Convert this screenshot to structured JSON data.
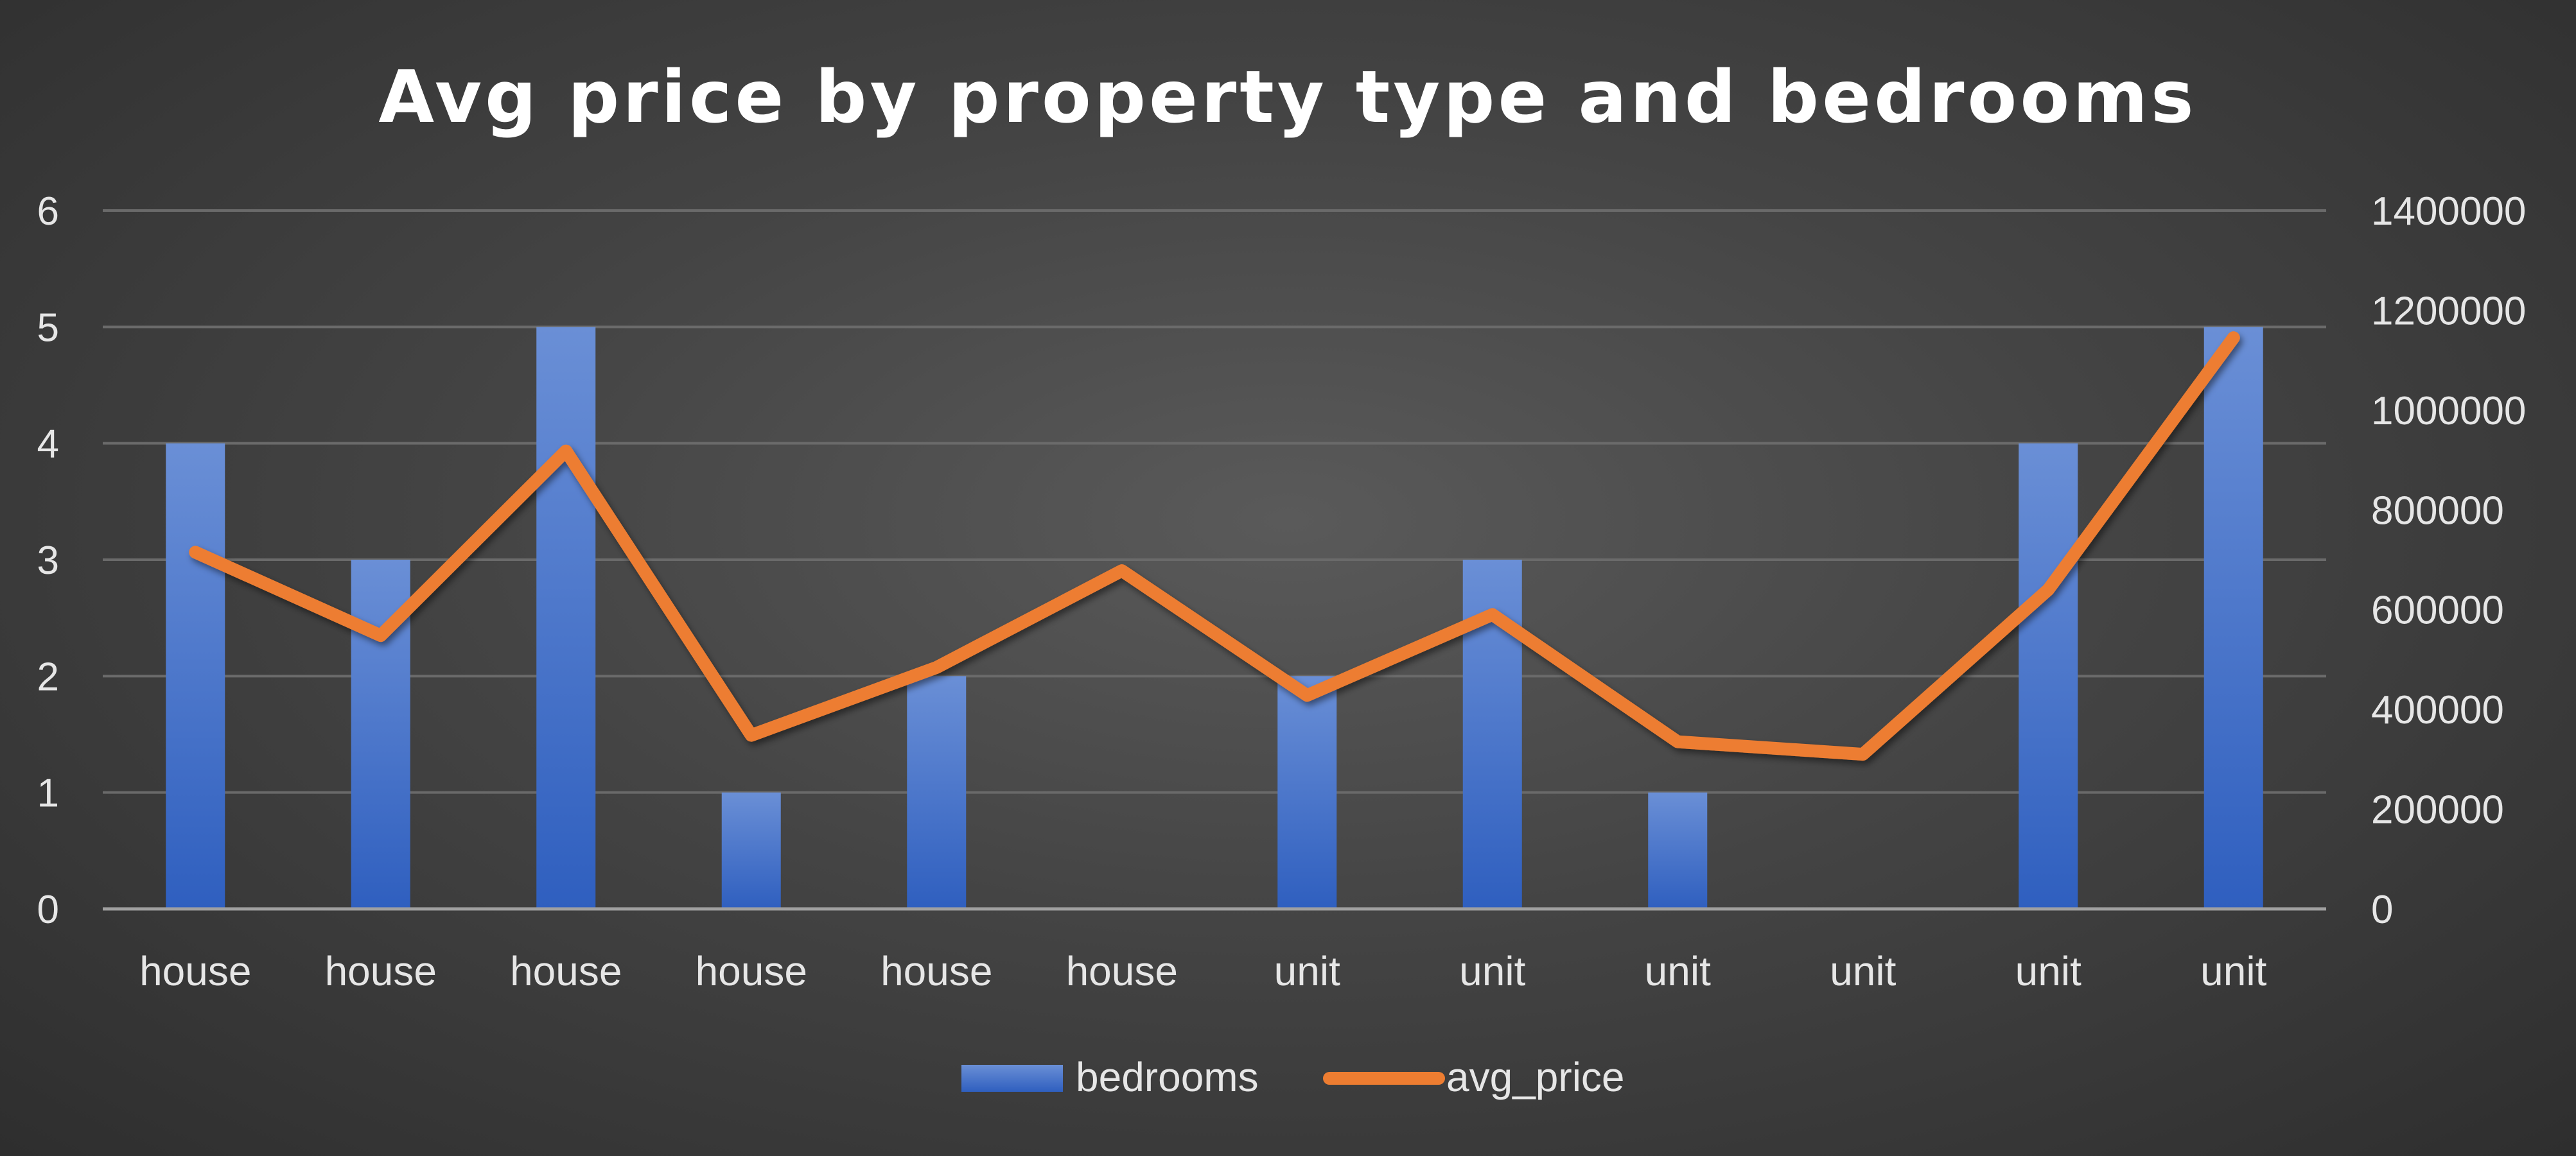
{
  "chart_data": {
    "type": "bar+line",
    "title": "Avg price by property type and bedrooms",
    "categories": [
      "house",
      "house",
      "house",
      "house",
      "house",
      "house",
      "unit",
      "unit",
      "unit",
      "unit",
      "unit",
      "unit"
    ],
    "series": [
      {
        "name": "bedrooms",
        "type": "bar",
        "axis": "left",
        "color": "#4472C4",
        "values": [
          4,
          3,
          5,
          1,
          2,
          0,
          2,
          3,
          1,
          0,
          4,
          5
        ]
      },
      {
        "name": "avg_price",
        "type": "line",
        "axis": "right",
        "color": "#ED7D31",
        "values": [
          715000,
          548000,
          918000,
          348000,
          484000,
          678000,
          428000,
          590000,
          335000,
          310000,
          640000,
          1145000
        ]
      }
    ],
    "y_left": {
      "min": 0,
      "max": 6,
      "ticks": [
        "0",
        "1",
        "2",
        "3",
        "4",
        "5",
        "6"
      ]
    },
    "y_right": {
      "min": 0,
      "max": 1400000,
      "ticks": [
        "0",
        "200000",
        "400000",
        "600000",
        "800000",
        "1000000",
        "1200000",
        "1400000"
      ]
    },
    "grid": true,
    "legend": "bottom"
  }
}
